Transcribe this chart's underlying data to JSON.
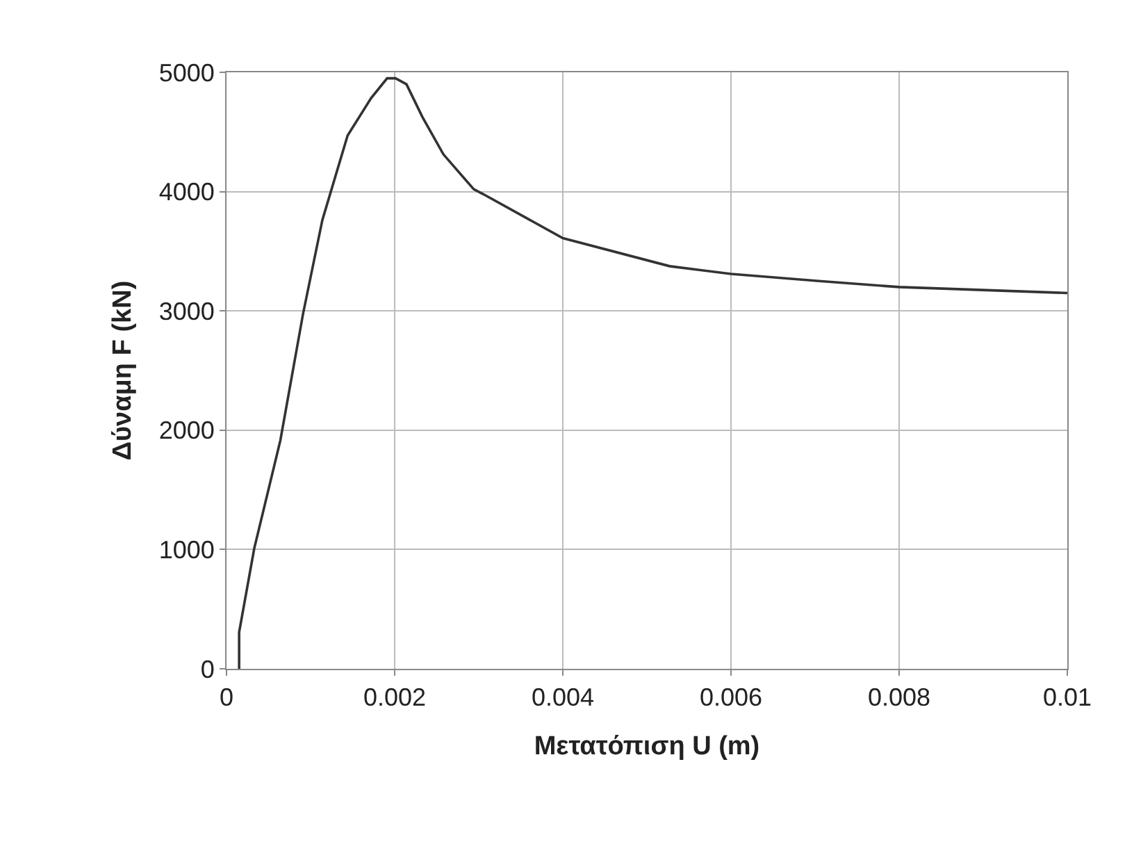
{
  "chart_data": {
    "type": "line",
    "xlabel": "Μετατόπιση U (m)",
    "ylabel": "Δύναμη F (kN)",
    "x": [
      0.00015,
      0.00015,
      0.00033,
      0.00064,
      0.00091,
      0.00114,
      0.00144,
      0.00172,
      0.00191,
      0.00201,
      0.00214,
      0.00233,
      0.00258,
      0.00294,
      0.00305,
      0.004,
      0.00527,
      0.006,
      0.00705,
      0.008,
      0.01
    ],
    "series": [
      {
        "color": "#333333",
        "values": [
          0,
          307,
          1010,
          1914,
          2975,
          3762,
          4470,
          4784,
          4950,
          4950,
          4900,
          4625,
          4312,
          4020,
          3980,
          3610,
          3375,
          3310,
          3250,
          3200,
          3150
        ]
      }
    ],
    "xlim": [
      0,
      0.01
    ],
    "xticks": [
      0,
      0.002,
      0.004,
      0.006,
      0.008,
      0.01
    ],
    "ylim": [
      0,
      5000
    ],
    "yticks": [
      0,
      1000,
      2000,
      3000,
      4000,
      5000
    ],
    "grid": true,
    "legend": false,
    "marker": "none",
    "line_style": "solid"
  }
}
